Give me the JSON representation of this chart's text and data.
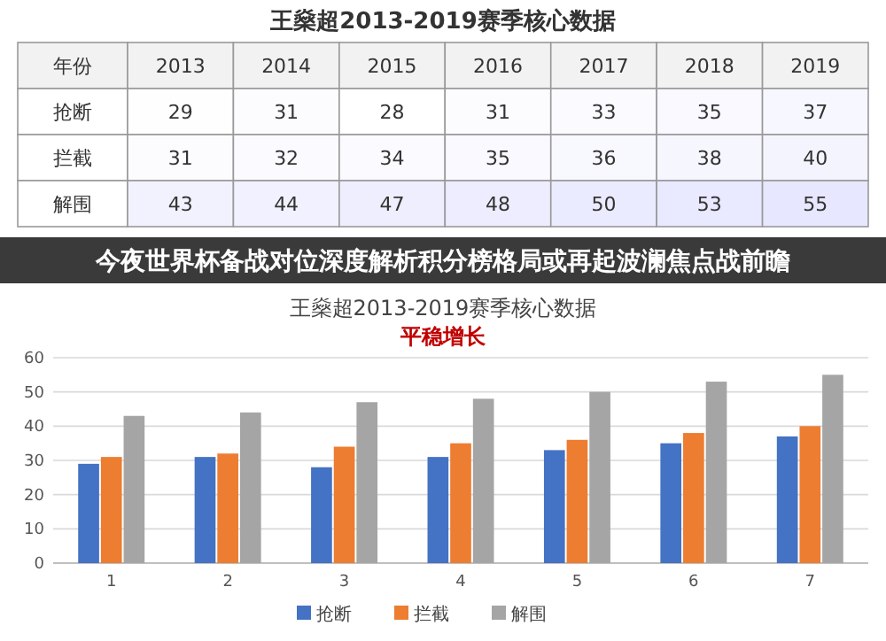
{
  "chart_data": [
    {
      "type": "heatmap",
      "title": "王燊超2013-2019赛季核心数据",
      "ylabel": "年份",
      "categories": [
        "2013",
        "2014",
        "2015",
        "2016",
        "2017",
        "2018",
        "2019"
      ],
      "y_categories": [
        "抢断",
        "拦截",
        "解围"
      ],
      "cells": [
        [
          29,
          31,
          28,
          31,
          33,
          35,
          37
        ],
        [
          31,
          32,
          34,
          35,
          36,
          38,
          40
        ],
        [
          43,
          44,
          47,
          48,
          50,
          53,
          55
        ]
      ],
      "cell_labels": [
        [
          "29",
          "31",
          "28",
          "31",
          "33",
          "35",
          "37"
        ],
        [
          "31",
          "32",
          "34",
          "35",
          "36",
          "38",
          "40"
        ],
        [
          "43",
          "44",
          "47",
          "48",
          "50",
          "53",
          "55"
        ]
      ]
    },
    {
      "type": "bar",
      "title": "王燊超2013-2019赛季核心数据",
      "subtitle": "平稳增长",
      "annotations": [
        "今夜世界杯备战对位深度解析积分榜格局或再起波澜焦点战前瞻"
      ],
      "categories": [
        "1",
        "2",
        "3",
        "4",
        "5",
        "6",
        "7"
      ],
      "series": [
        {
          "name": "抢断",
          "color": "#4472c4",
          "values": [
            29,
            31,
            28,
            31,
            33,
            35,
            37
          ]
        },
        {
          "name": "拦截",
          "color": "#ed7d31",
          "values": [
            31,
            32,
            34,
            35,
            36,
            38,
            40
          ]
        },
        {
          "name": "解围",
          "color": "#a5a5a5",
          "values": [
            43,
            44,
            47,
            48,
            50,
            53,
            55
          ]
        }
      ],
      "ylim": [
        0,
        60
      ],
      "yticks": [
        0,
        10,
        20,
        30,
        40,
        50,
        60
      ],
      "grid": "y",
      "legend": "bottom"
    }
  ]
}
